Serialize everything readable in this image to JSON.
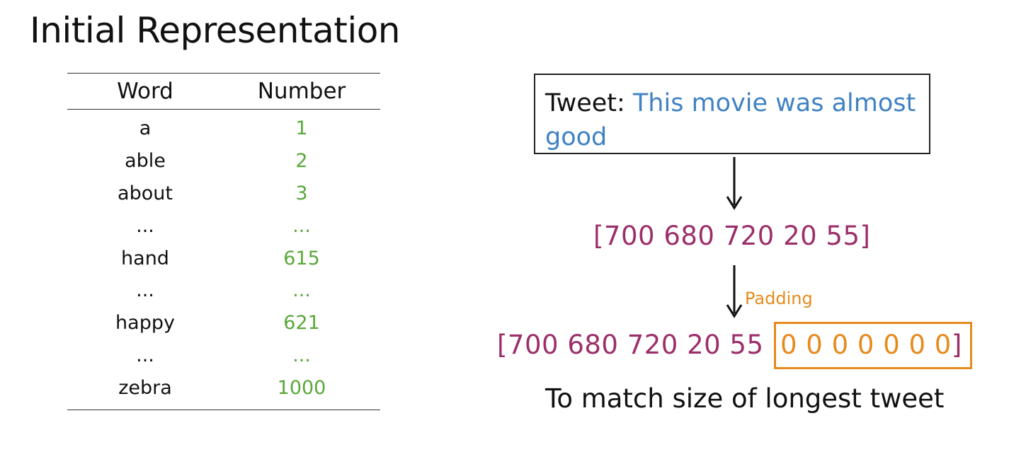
{
  "title": "Initial Representation",
  "table": {
    "headers": [
      "Word",
      "Number"
    ],
    "rows": [
      {
        "word": "a",
        "number": "1"
      },
      {
        "word": "able",
        "number": "2"
      },
      {
        "word": "about",
        "number": "3"
      },
      {
        "word": "...",
        "number": "..."
      },
      {
        "word": "hand",
        "number": "615"
      },
      {
        "word": "...",
        "number": "..."
      },
      {
        "word": "happy",
        "number": "621"
      },
      {
        "word": "...",
        "number": "..."
      },
      {
        "word": "zebra",
        "number": "1000"
      }
    ]
  },
  "tweet": {
    "label": "Tweet: ",
    "text": "This movie was almost good"
  },
  "vector": "[700 680 720 20 55]",
  "padding_label": "Padding",
  "padded_vector": {
    "values_part": "[700 680 720 20 55 ",
    "zeros_part": "0 0 0 0 0 0 0",
    "closing": "]"
  },
  "caption": "To match size of longest tweet",
  "colors": {
    "number_green": "#5aa83a",
    "tweet_blue": "#3f82c4",
    "vector_magenta": "#9c2f6a",
    "padding_orange": "#e68a1c"
  }
}
